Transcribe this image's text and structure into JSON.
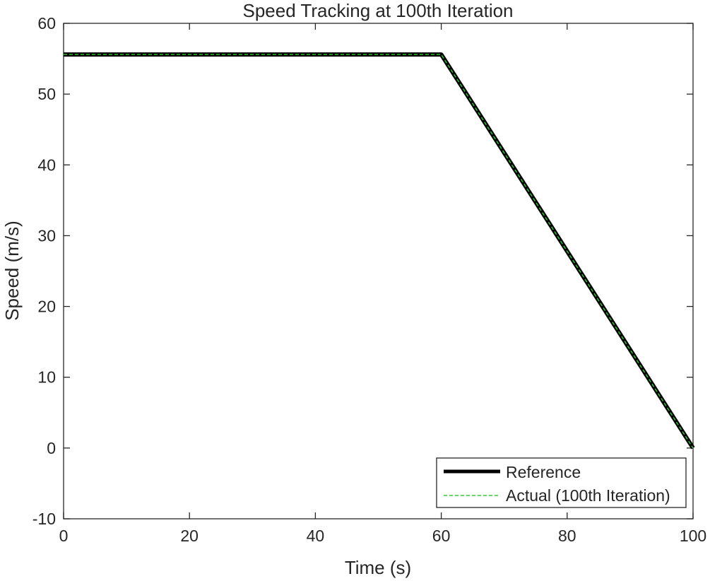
{
  "chart_data": {
    "type": "line",
    "title": "Speed Tracking at 100th Iteration",
    "xlabel": "Time (s)",
    "ylabel": "Speed (m/s)",
    "xlim": [
      0,
      100
    ],
    "ylim": [
      -10,
      60
    ],
    "xticks": [
      0,
      20,
      40,
      60,
      80,
      100
    ],
    "yticks": [
      -10,
      0,
      10,
      20,
      30,
      40,
      50,
      60
    ],
    "grid": false,
    "legend_position": "bottom-right",
    "series": [
      {
        "name": "Reference",
        "color": "#000000",
        "style": "solid",
        "x": [
          0,
          60,
          100
        ],
        "y": [
          55.6,
          55.6,
          0
        ]
      },
      {
        "name": "Actual (100th Iteration)",
        "color": "#33cc33",
        "style": "dashed",
        "x": [
          0,
          60,
          100
        ],
        "y": [
          55.6,
          55.6,
          0
        ]
      }
    ]
  }
}
